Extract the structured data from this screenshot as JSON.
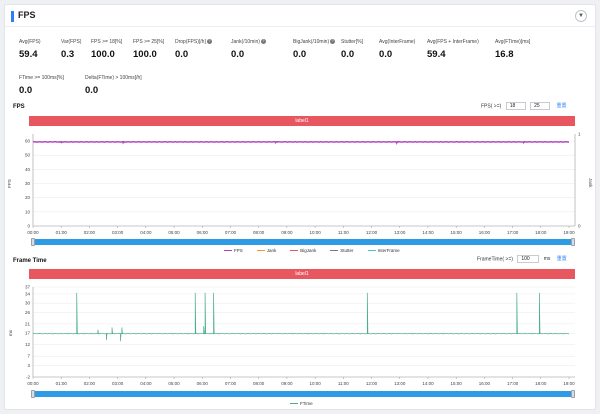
{
  "header": {
    "title": "FPS",
    "collapse_icon": "chevron-down-icon"
  },
  "metrics": [
    {
      "label": "Avg(FPS)",
      "value": "59.4",
      "help": false
    },
    {
      "label": "Var(FPS)",
      "value": "0.3",
      "help": false
    },
    {
      "label": "FPS >= 18[%]",
      "value": "100.0",
      "help": false
    },
    {
      "label": "FPS >= 25[%]",
      "value": "100.0",
      "help": false
    },
    {
      "label": "Drop(FPS)[/h]",
      "value": "0.0",
      "help": true
    },
    {
      "label": "Jank(/10min)",
      "value": "0.0",
      "help": true
    },
    {
      "label": "BigJank(/10min)",
      "value": "0.0",
      "help": true
    },
    {
      "label": "Stutter[%]",
      "value": "0.0",
      "help": false
    },
    {
      "label": "Avg(InterFrame)",
      "value": "0.0",
      "help": false
    },
    {
      "label": "Avg(FPS + InterFrame)",
      "value": "59.4",
      "help": false
    },
    {
      "label": "Avg(FTime)[ms]",
      "value": "16.8",
      "help": false
    },
    {
      "label": "FTime >= 100ms[%]",
      "value": "0.0",
      "help": false
    },
    {
      "label": "Delta(FTime) > 100ms[/h]",
      "value": "0.0",
      "help": false
    }
  ],
  "fps_section": {
    "title": "FPS",
    "control_label": "FPS( >=)",
    "threshold1": "18",
    "threshold2": "25",
    "reset_label": "重置",
    "band_label": "label1",
    "y_axis_label": "FPS",
    "y2_axis_label": "Jank",
    "legend": [
      {
        "name": "FPS",
        "color": "#b03cbf"
      },
      {
        "name": "Jank",
        "color": "#f29a38"
      },
      {
        "name": "BigJank",
        "color": "#e8565f"
      },
      {
        "name": "Stutter",
        "color": "#7b7b7b"
      },
      {
        "name": "InterFrame",
        "color": "#44c6d8"
      }
    ]
  },
  "ftime_section": {
    "title": "Frame Time",
    "control_label": "FrameTime( >=)",
    "threshold": "100",
    "unit": "ms",
    "reset_label": "重置",
    "band_label": "label1",
    "y_axis_label": "ms",
    "legend": [
      {
        "name": "FTime",
        "color": "#4cae8a"
      }
    ]
  },
  "chart_data": [
    {
      "type": "line",
      "x_ticks": [
        "00:00",
        "01:00",
        "02:00",
        "03:00",
        "04:00",
        "05:00",
        "06:00",
        "07:00",
        "08:00",
        "09:00",
        "10:00",
        "11:00",
        "12:00",
        "13:00",
        "14:00",
        "15:00",
        "16:00",
        "17:00",
        "18:00",
        "19:00"
      ],
      "y_ticks": [
        "0",
        "10",
        "20",
        "30",
        "40",
        "50",
        "60"
      ],
      "ylim": [
        0,
        65
      ],
      "y2_ticks": [
        "0",
        "1"
      ],
      "series": [
        {
          "name": "FPS",
          "baseline": 59.4,
          "dips": [
            {
              "t": 1.0,
              "y": 58.6
            },
            {
              "t": 3.2,
              "y": 58.9
            },
            {
              "t": 8.6,
              "y": 59.0
            },
            {
              "t": 12.9,
              "y": 58.8
            },
            {
              "t": 17.4,
              "y": 59.0
            }
          ]
        }
      ]
    },
    {
      "type": "line",
      "x_ticks": [
        "00:00",
        "01:00",
        "02:00",
        "03:00",
        "04:00",
        "05:00",
        "06:00",
        "07:00",
        "08:00",
        "09:00",
        "10:00",
        "11:00",
        "12:00",
        "13:00",
        "14:00",
        "15:00",
        "16:00",
        "17:00",
        "18:00",
        "19:00"
      ],
      "y_ticks": [
        "-2",
        "3",
        "7",
        "12",
        "17",
        "21",
        "26",
        "30",
        "34",
        "37"
      ],
      "ylim": [
        -2,
        37
      ],
      "series": [
        {
          "name": "FTime",
          "baseline": 16.8,
          "spikes": [
            {
              "t": 1.55,
              "y": 34.5
            },
            {
              "t": 1.58,
              "y": 17.0
            },
            {
              "t": 2.3,
              "y": 18.5
            },
            {
              "t": 2.6,
              "y": 14.0
            },
            {
              "t": 2.8,
              "y": 19.5
            },
            {
              "t": 3.1,
              "y": 13.5
            },
            {
              "t": 3.15,
              "y": 19.5
            },
            {
              "t": 5.75,
              "y": 34.5
            },
            {
              "t": 6.1,
              "y": 34.5
            },
            {
              "t": 6.4,
              "y": 34.5
            },
            {
              "t": 6.05,
              "y": 20.0
            },
            {
              "t": 11.85,
              "y": 34.5
            },
            {
              "t": 17.15,
              "y": 34.5
            },
            {
              "t": 17.95,
              "y": 34.5
            }
          ]
        }
      ]
    }
  ]
}
